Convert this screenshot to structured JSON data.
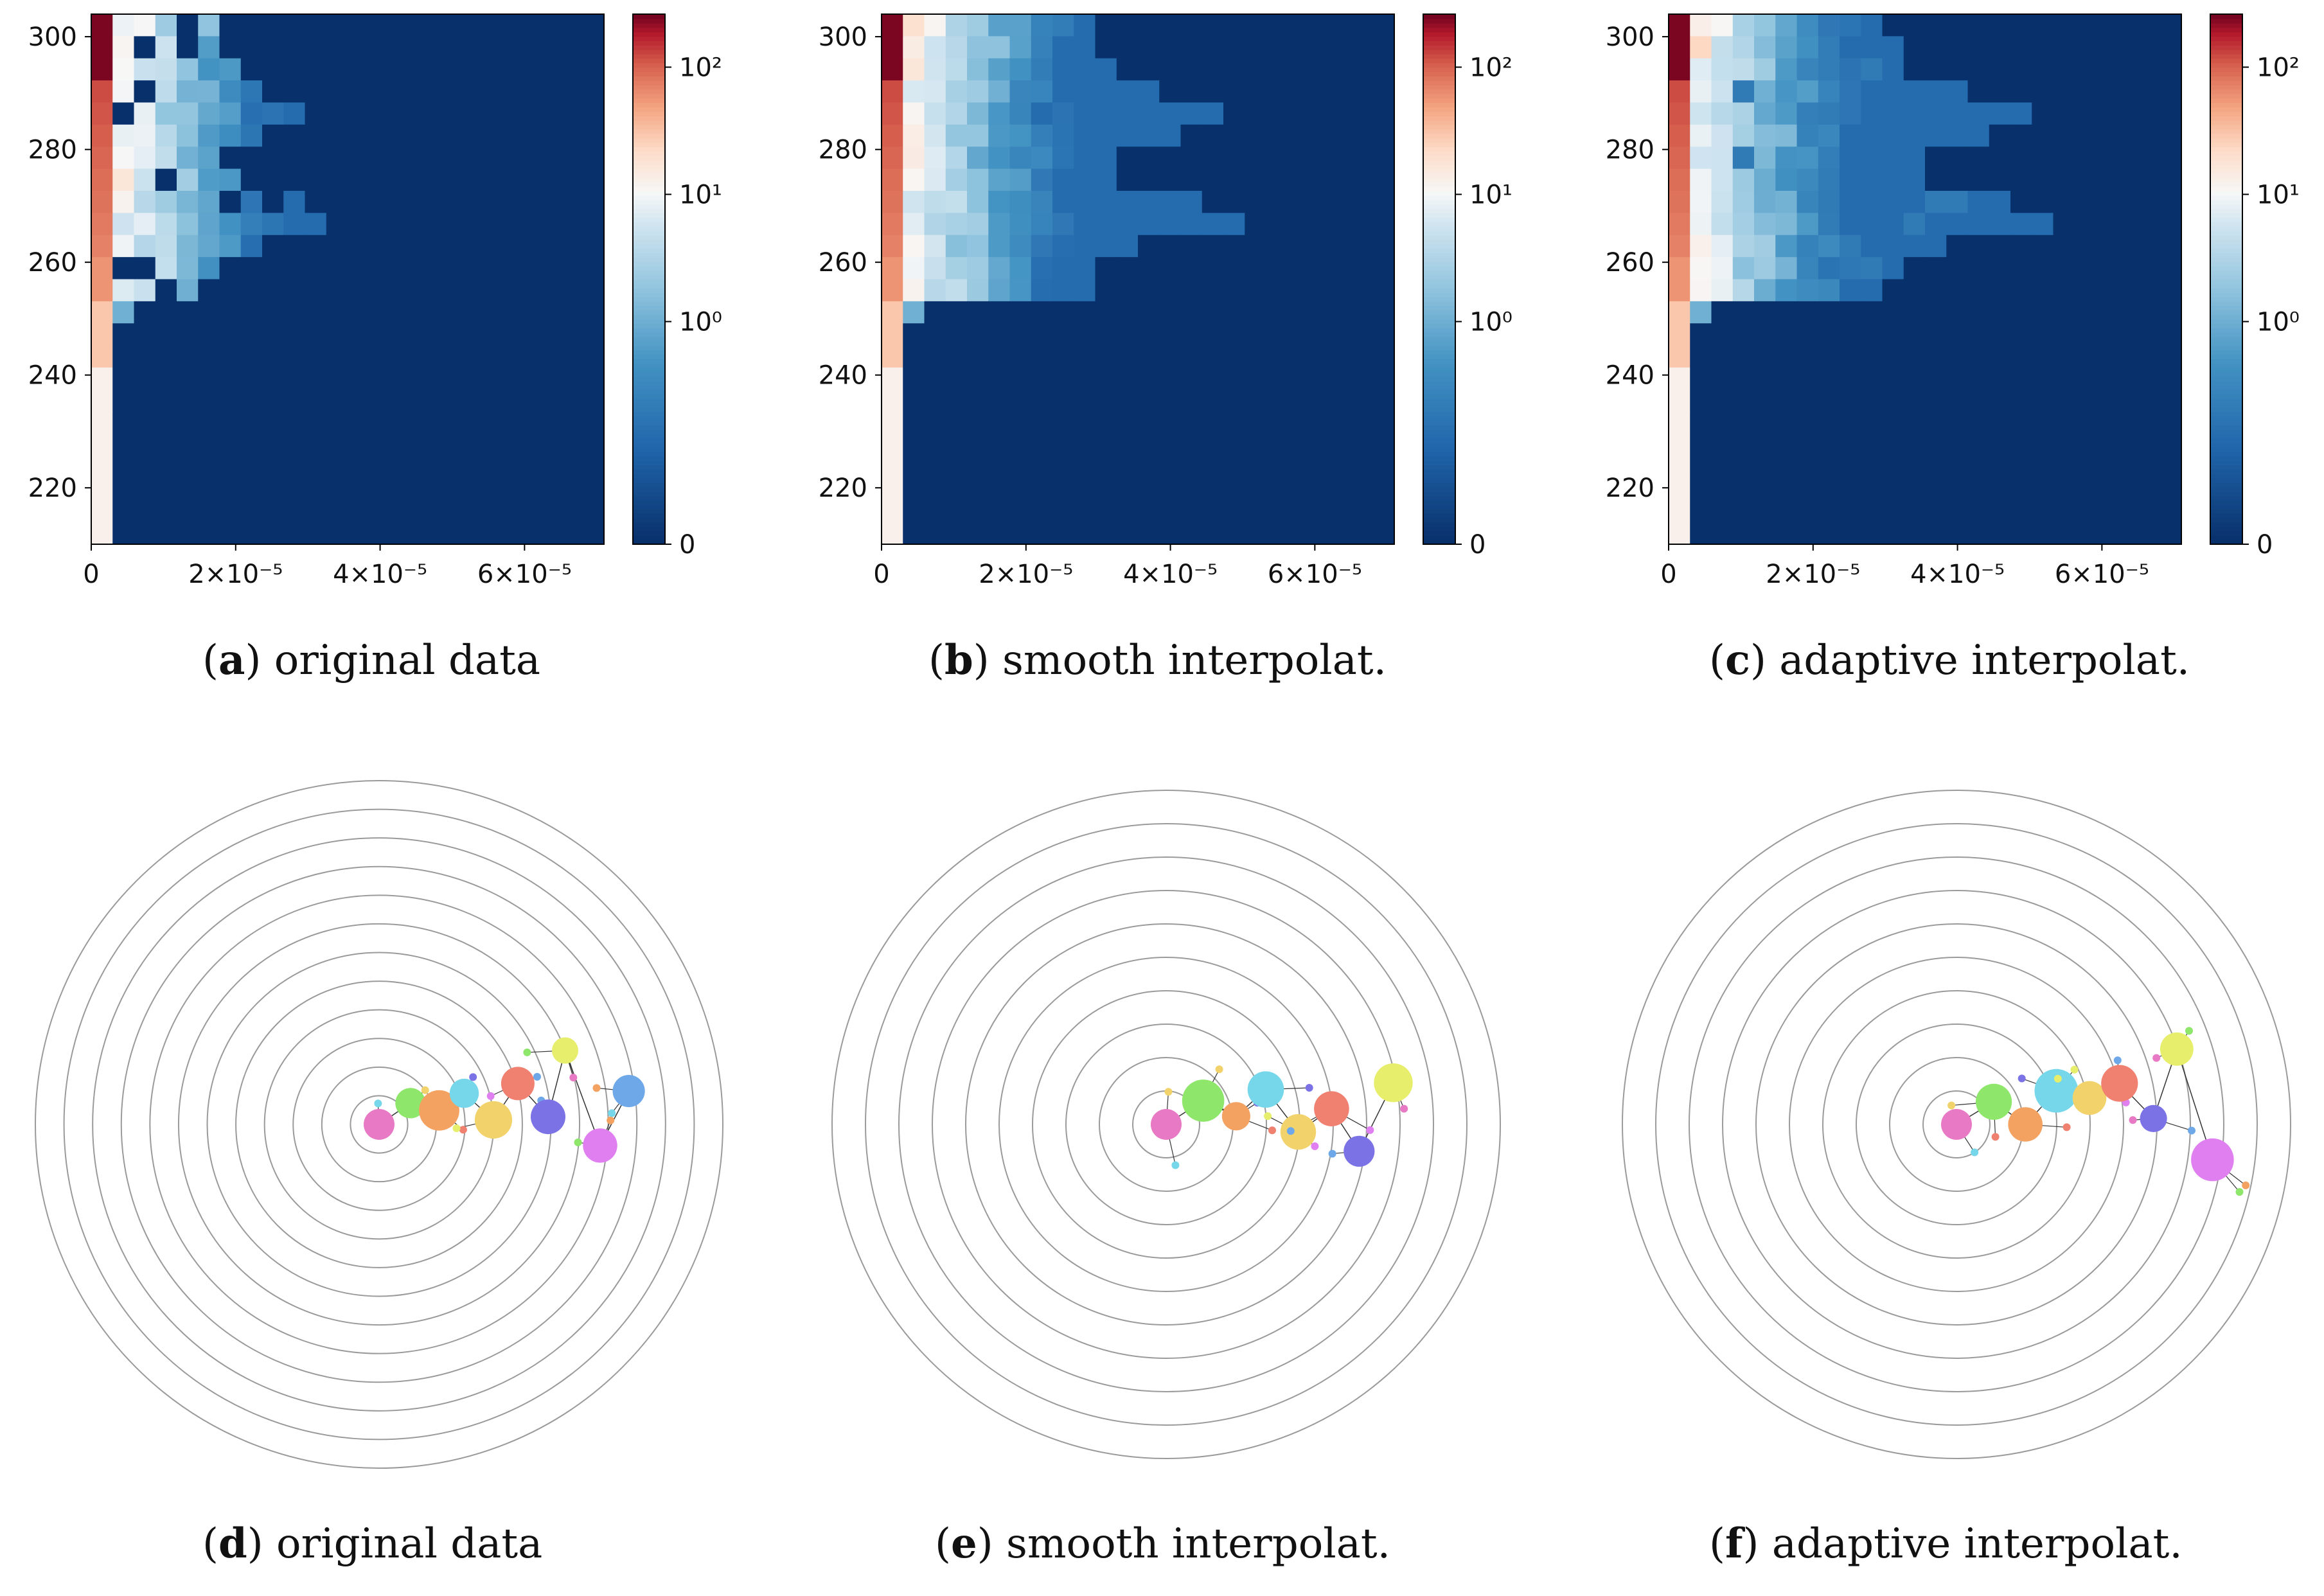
{
  "chart_data": [
    {
      "type": "heatmap",
      "panel": "a",
      "caption_letter": "a",
      "caption_text": "original data",
      "y_ticks": [
        "220",
        "240",
        "260",
        "280",
        "300"
      ],
      "y_tick_values": [
        220,
        240,
        260,
        280,
        300
      ],
      "ylim": [
        210,
        304
      ],
      "x_ticks": [
        "0",
        "2×10⁻⁵",
        "4×10⁻⁵",
        "6×10⁻⁵"
      ],
      "x_tick_values": [
        0,
        2e-05,
        4e-05,
        6e-05
      ],
      "xlim": [
        0,
        7.1e-05
      ],
      "colorbar_ticks": [
        "0",
        "10⁰",
        "10¹",
        "10²"
      ],
      "colorbar_tick_levels": [
        0,
        0.42,
        0.66,
        0.9
      ],
      "grid_cols": 24,
      "grid_rows": 24,
      "cells": [
        "r..........................................",
        "rrr...",
        "r"
      ]
    },
    {
      "type": "heatmap",
      "panel": "b",
      "caption_letter": "b",
      "caption_text": "smooth interpolat.",
      "y_ticks": [
        "220",
        "240",
        "260",
        "280",
        "300"
      ],
      "y_tick_values": [
        220,
        240,
        260,
        280,
        300
      ],
      "ylim": [
        210,
        304
      ],
      "x_ticks": [
        "0",
        "2×10⁻⁵",
        "4×10⁻⁵",
        "6×10⁻⁵"
      ],
      "x_tick_values": [
        0,
        2e-05,
        4e-05,
        6e-05
      ],
      "xlim": [
        0,
        7.1e-05
      ],
      "colorbar_ticks": [
        "0",
        "10⁰",
        "10¹",
        "10²"
      ],
      "colorbar_tick_levels": [
        0,
        0.42,
        0.66,
        0.9
      ]
    },
    {
      "type": "heatmap",
      "panel": "c",
      "caption_letter": "c",
      "caption_text": "adaptive interpolat.",
      "y_ticks": [
        "220",
        "240",
        "260",
        "280",
        "300"
      ],
      "y_tick_values": [
        220,
        240,
        260,
        280,
        300
      ],
      "ylim": [
        210,
        304
      ],
      "x_ticks": [
        "0",
        "2×10⁻⁵",
        "4×10⁻⁵",
        "6×10⁻⁵"
      ],
      "x_tick_values": [
        0,
        2e-05,
        4e-05,
        6e-05
      ],
      "xlim": [
        0,
        7.1e-05
      ],
      "colorbar_ticks": [
        "0",
        "10⁰",
        "10¹",
        "10²"
      ],
      "colorbar_tick_levels": [
        0,
        0.42,
        0.66,
        0.9
      ]
    },
    {
      "type": "radial-tree",
      "panel": "d",
      "caption_letter": "d",
      "caption_text": "original data",
      "rings": 12
    },
    {
      "type": "radial-tree",
      "panel": "e",
      "caption_letter": "e",
      "caption_text": "smooth interpolat.",
      "rings": 10
    },
    {
      "type": "radial-tree",
      "panel": "f",
      "caption_letter": "f",
      "caption_text": "adaptive interpolat.",
      "rings": 10
    }
  ],
  "palette": {
    "deep_blue": "#08306b",
    "mid_blue": "#4a90c6",
    "light_blue": "#b7d8ea",
    "white": "#f7f7f7",
    "salmon": "#f4a582",
    "red": "#d6604d",
    "dark_red": "#67001f",
    "ring": "#9a9a9a",
    "edge": "#333333"
  }
}
